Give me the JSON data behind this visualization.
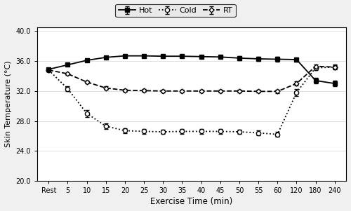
{
  "x_labels": [
    "Rest",
    "5",
    "10",
    "15",
    "20",
    "25",
    "30",
    "35",
    "40",
    "45",
    "50",
    "55",
    "60",
    "120",
    "180",
    "240"
  ],
  "x_positions": [
    0,
    1,
    2,
    3,
    4,
    5,
    6,
    7,
    8,
    9,
    10,
    11,
    12,
    13,
    14,
    15
  ],
  "hot_mean": [
    34.9,
    35.5,
    36.1,
    36.5,
    36.7,
    36.7,
    36.65,
    36.65,
    36.6,
    36.55,
    36.4,
    36.3,
    36.25,
    36.2,
    33.4,
    33.0
  ],
  "hot_se": [
    0.15,
    0.15,
    0.2,
    0.2,
    0.2,
    0.2,
    0.2,
    0.2,
    0.2,
    0.2,
    0.25,
    0.25,
    0.3,
    0.3,
    0.35,
    0.35
  ],
  "cold_mean": [
    34.8,
    32.3,
    29.0,
    27.3,
    26.7,
    26.6,
    26.55,
    26.6,
    26.6,
    26.6,
    26.55,
    26.4,
    26.2,
    31.8,
    35.1,
    35.2
  ],
  "cold_se": [
    0.2,
    0.35,
    0.45,
    0.35,
    0.3,
    0.3,
    0.3,
    0.3,
    0.3,
    0.3,
    0.3,
    0.3,
    0.35,
    0.5,
    0.3,
    0.3
  ],
  "rt_mean": [
    34.8,
    34.3,
    33.2,
    32.4,
    32.1,
    32.05,
    32.0,
    32.0,
    32.0,
    32.0,
    32.0,
    31.95,
    31.95,
    33.0,
    35.3,
    35.2
  ],
  "rt_se": [
    0.15,
    0.15,
    0.2,
    0.2,
    0.2,
    0.2,
    0.2,
    0.2,
    0.2,
    0.2,
    0.2,
    0.2,
    0.25,
    0.3,
    0.25,
    0.25
  ],
  "ylabel": "Skin Temperature (°C)",
  "xlabel": "Exercise Time (min)",
  "ylim": [
    20.0,
    40.5
  ],
  "yticks": [
    20.0,
    24.0,
    28.0,
    32.0,
    36.0,
    40.0
  ],
  "legend_labels": [
    "Hot",
    "Cold",
    "RT"
  ],
  "bg_color": "#f0f0f0",
  "plot_bg": "#ffffff"
}
